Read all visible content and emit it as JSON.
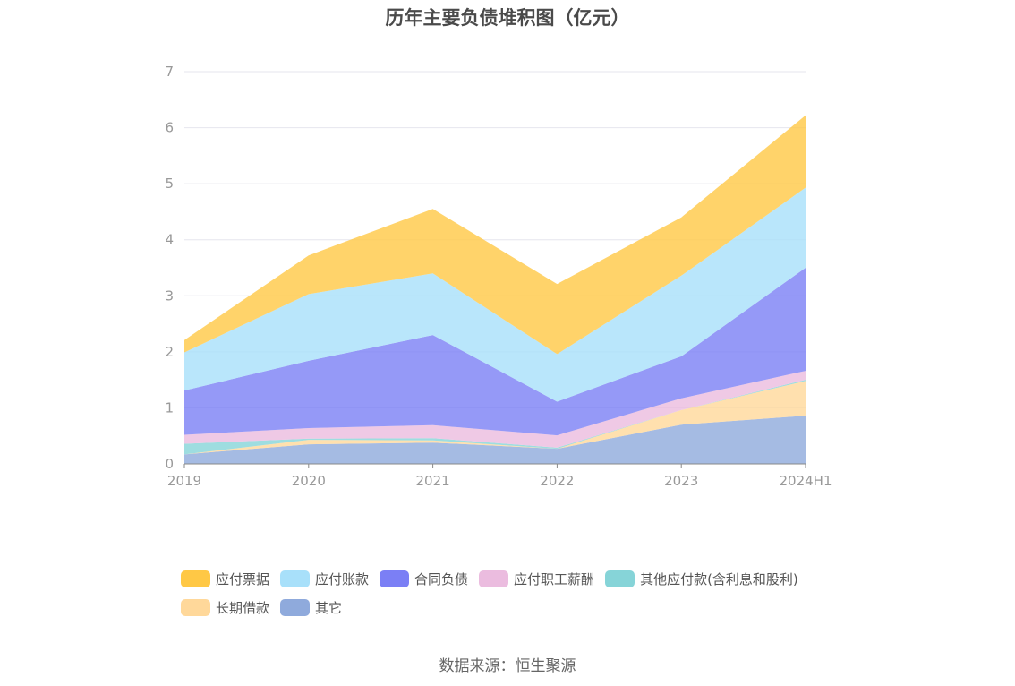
{
  "chart_data": {
    "type": "area",
    "stacked": true,
    "title": "历年主要负债堆积图（亿元）",
    "categories": [
      "2019",
      "2020",
      "2021",
      "2022",
      "2023",
      "2024H1"
    ],
    "ylim": [
      0,
      7
    ],
    "yticks": [
      "0",
      "1",
      "2",
      "3",
      "4",
      "5",
      "6",
      "7"
    ],
    "grid": true,
    "legend_position": "bottom",
    "series": [
      {
        "name": "其它",
        "color": "#8faadc",
        "values": [
          0.17,
          0.35,
          0.38,
          0.27,
          0.7,
          0.86
        ]
      },
      {
        "name": "长期借款",
        "color": "#ffd89a",
        "values": [
          0.0,
          0.08,
          0.04,
          0.0,
          0.26,
          0.62
        ]
      },
      {
        "name": "其他应付款(含利息和股利)",
        "color": "#86d4d8",
        "values": [
          0.19,
          0.02,
          0.04,
          0.02,
          0.0,
          0.02
        ]
      },
      {
        "name": "应付职工薪酬",
        "color": "#ebbcdf",
        "values": [
          0.16,
          0.19,
          0.23,
          0.22,
          0.21,
          0.16
        ]
      },
      {
        "name": "合同负债",
        "color": "#7b7ff5",
        "values": [
          0.79,
          1.2,
          1.61,
          0.6,
          0.75,
          1.84
        ]
      },
      {
        "name": "应付账款",
        "color": "#a8e0fa",
        "values": [
          0.68,
          1.19,
          1.1,
          0.85,
          1.44,
          1.43
        ]
      },
      {
        "name": "应付票据",
        "color": "#ffc845",
        "values": [
          0.22,
          0.69,
          1.15,
          1.25,
          1.04,
          1.29
        ]
      }
    ]
  },
  "legend": {
    "row1": [
      "应付票据",
      "应付账款",
      "合同负债",
      "应付职工薪酬",
      "其他应付款(含利息和股利)"
    ],
    "row2": [
      "长期借款",
      "其它"
    ],
    "colors": {
      "应付票据": "#ffc845",
      "应付账款": "#a8e0fa",
      "合同负债": "#7b7ff5",
      "应付职工薪酬": "#ebbcdf",
      "其他应付款(含利息和股利)": "#86d4d8",
      "长期借款": "#ffd89a",
      "其它": "#8faadc"
    }
  },
  "source": "数据来源：恒生聚源"
}
